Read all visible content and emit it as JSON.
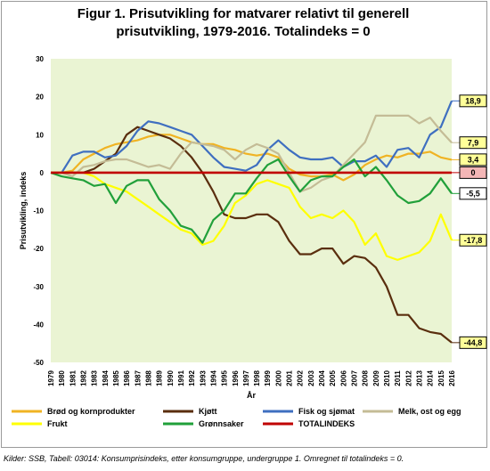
{
  "chart_data": {
    "type": "line",
    "title_line1": "Figur 1. Prisutvikling for matvarer relativt til generell",
    "title_line2": "prisutvikling, 1979-2016. Totalindeks = 0",
    "xlabel": "År",
    "ylabel": "Prisutvikling, indeks",
    "ylim": [
      -50,
      30
    ],
    "yticks": [
      30,
      20,
      10,
      0,
      -10,
      -20,
      -30,
      -40,
      -50
    ],
    "grid": false,
    "plot_background": "#eaf4d3",
    "x": [
      1979,
      1980,
      1981,
      1982,
      1983,
      1984,
      1985,
      1986,
      1987,
      1988,
      1989,
      1990,
      1991,
      1992,
      1993,
      1994,
      1995,
      1996,
      1997,
      1998,
      1999,
      2000,
      2001,
      2002,
      2003,
      2004,
      2005,
      2006,
      2007,
      2008,
      2009,
      2010,
      2011,
      2012,
      2013,
      2014,
      2015,
      2016
    ],
    "series": [
      {
        "name": "Brød og kornprodukter",
        "color": "#f0b323",
        "values": [
          0,
          0,
          0.5,
          3.5,
          5,
          6.5,
          7.5,
          8,
          8.5,
          9.5,
          10,
          10,
          9,
          8,
          7.5,
          7.5,
          6.5,
          6,
          5,
          4.5,
          5,
          4,
          1,
          -0.5,
          -1,
          -1,
          -0.5,
          -2,
          -0.5,
          2,
          3.5,
          4.5,
          4,
          5,
          5,
          5.5,
          4,
          3.4
        ]
      },
      {
        "name": "Kjøtt",
        "color": "#5a2e0e",
        "values": [
          0,
          0,
          0,
          0,
          1,
          3,
          5,
          10,
          12,
          11,
          10,
          9,
          7,
          4,
          0,
          -5,
          -11,
          -12,
          -12,
          -11,
          -11,
          -13,
          -18,
          -21.5,
          -21.5,
          -20,
          -20,
          -24,
          -22,
          -22.5,
          -25,
          -30,
          -37.5,
          -37.5,
          -41,
          -42,
          -42.5,
          -44.8
        ]
      },
      {
        "name": "Fisk og sjømat",
        "color": "#3f6fc0",
        "values": [
          0,
          0,
          4.5,
          5.5,
          5.5,
          4,
          4.5,
          7,
          11,
          13.5,
          13,
          12,
          11,
          10,
          7,
          4,
          1.5,
          1,
          0.5,
          2,
          6,
          8.5,
          6,
          4,
          3.5,
          3.5,
          4,
          1.5,
          3,
          3,
          4.5,
          1.5,
          6,
          6.5,
          4,
          10,
          12,
          18.9
        ]
      },
      {
        "name": "Melk, ost og egg",
        "color": "#c4bc96",
        "values": [
          0,
          0,
          -1,
          1.5,
          2,
          3,
          3.5,
          3.5,
          2.5,
          1.5,
          2,
          1,
          5,
          8,
          7.5,
          7,
          6,
          3.5,
          6,
          7.5,
          6.5,
          5,
          0,
          -5,
          -4,
          -2,
          -1,
          2,
          5,
          8,
          15,
          15,
          15,
          15,
          13,
          14.5,
          11,
          7.9
        ]
      },
      {
        "name": "Frukt",
        "color": "#ffff00",
        "values": [
          0,
          0,
          0,
          0,
          -1,
          -3,
          -4,
          -5,
          -7,
          -9,
          -11,
          -13,
          -15,
          -16,
          -19,
          -18,
          -14,
          -8,
          -6,
          -3,
          -2,
          -3,
          -4,
          -9,
          -12,
          -11,
          -12,
          -10,
          -13,
          -19,
          -16,
          -22,
          -23,
          -22,
          -21,
          -18,
          -11,
          -17.8
        ]
      },
      {
        "name": "Grønnsaker",
        "color": "#21a03a",
        "values": [
          0,
          -1,
          -1.5,
          -2,
          -3.5,
          -3,
          -8,
          -3.5,
          -2,
          -2,
          -7,
          -10,
          -14,
          -15,
          -18.5,
          -12.5,
          -10,
          -5.5,
          -5.5,
          -1.5,
          2,
          3.5,
          -1,
          -5,
          -2,
          -1,
          -1,
          1.5,
          3.5,
          -1,
          1.5,
          -2,
          -6,
          -8,
          -7.5,
          -5.5,
          -1.5,
          -5.5
        ]
      },
      {
        "name": "TOTALINDEKS",
        "color": "#c00000",
        "values": [
          0,
          0,
          0,
          0,
          0,
          0,
          0,
          0,
          0,
          0,
          0,
          0,
          0,
          0,
          0,
          0,
          0,
          0,
          0,
          0,
          0,
          0,
          0,
          0,
          0,
          0,
          0,
          0,
          0,
          0,
          0,
          0,
          0,
          0,
          0,
          0,
          0,
          0
        ]
      }
    ],
    "end_labels": [
      {
        "text": "18,9",
        "value": 18.9,
        "fill": "#ffff99",
        "line": "#3f6fc0"
      },
      {
        "text": "7,9",
        "value": 7.9,
        "fill": "#ffff99",
        "line": "#c4bc96"
      },
      {
        "text": "3,4",
        "value": 3.4,
        "fill": "#ffff99",
        "line": "#f0b323"
      },
      {
        "text": "0",
        "value": 0,
        "fill": "#f4b6b6",
        "line": "#c00000"
      },
      {
        "text": "-5,5",
        "value": -5.5,
        "fill": "#ffffff",
        "line": "#21a03a"
      },
      {
        "text": "-17,8",
        "value": -17.8,
        "fill": "#ffff99",
        "line": "#ffff00"
      },
      {
        "text": "-44,8",
        "value": -44.8,
        "fill": "#ffff99",
        "line": "#5a2e0e"
      }
    ]
  },
  "source_note": "Kilder: SSB, Tabell: 03014: Konsumprisindeks, etter konsumgruppe, undergruppe 1. Omregnet til totalindeks = 0."
}
